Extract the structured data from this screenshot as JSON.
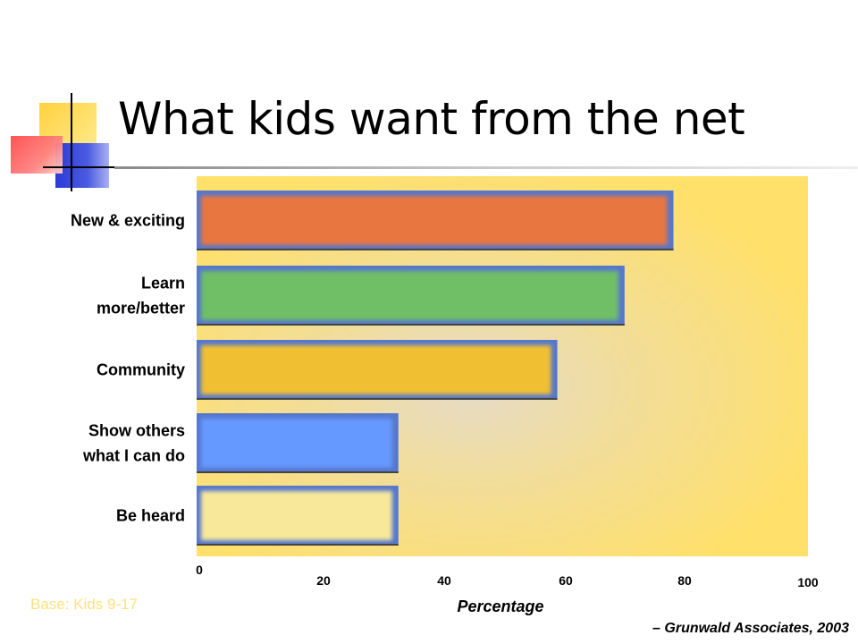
{
  "slide": {
    "title": "What kids want from the net",
    "base_note": "Base:  Kids 9-17",
    "source": "– Grunwald Associates, 2003"
  },
  "chart_data": {
    "type": "bar",
    "orientation": "horizontal",
    "categories": [
      [
        "New & exciting"
      ],
      [
        "Learn",
        "more/better"
      ],
      [
        "Community"
      ],
      [
        "Show others",
        "what I can do"
      ],
      [
        "Be heard"
      ]
    ],
    "values": [
      78,
      70,
      59,
      33,
      33
    ],
    "xlabel": "Percentage",
    "ylabel": "",
    "xlim": [
      0,
      100
    ],
    "ticks": [
      0,
      20,
      40,
      60,
      80,
      100
    ],
    "grid": false,
    "colors": {
      "bars": [
        "#e8763f",
        "#70bf66",
        "#f0c030",
        "#6699ff",
        "#f8e89a"
      ],
      "plot_background": "#ffe06a",
      "bar_edge": "#5577cc"
    }
  }
}
